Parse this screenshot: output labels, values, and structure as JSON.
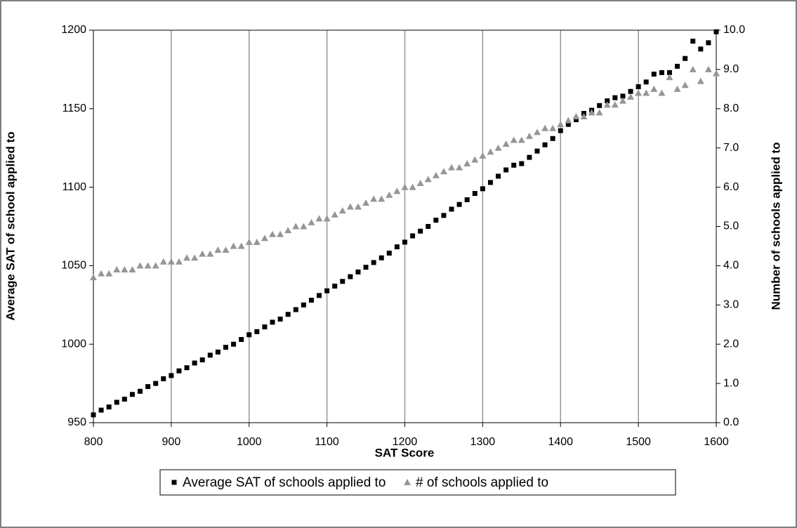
{
  "chart_data": {
    "type": "scatter",
    "x_label": "SAT Score",
    "y_label": "Average SAT of school applied to",
    "y2_label": "Number of schools applied to",
    "x": [
      800,
      810,
      820,
      830,
      840,
      850,
      860,
      870,
      880,
      890,
      900,
      910,
      920,
      930,
      940,
      950,
      960,
      970,
      980,
      990,
      1000,
      1010,
      1020,
      1030,
      1040,
      1050,
      1060,
      1070,
      1080,
      1090,
      1100,
      1110,
      1120,
      1130,
      1140,
      1150,
      1160,
      1170,
      1180,
      1190,
      1200,
      1210,
      1220,
      1230,
      1240,
      1250,
      1260,
      1270,
      1280,
      1290,
      1300,
      1310,
      1320,
      1330,
      1340,
      1350,
      1360,
      1370,
      1380,
      1390,
      1400,
      1410,
      1420,
      1430,
      1440,
      1450,
      1460,
      1470,
      1480,
      1490,
      1500,
      1510,
      1520,
      1530,
      1540,
      1550,
      1560,
      1570,
      1580,
      1590,
      1600
    ],
    "series": [
      {
        "name": "Average SAT of schools applied to",
        "color": "#000000",
        "marker": "square",
        "values": [
          955,
          958,
          960,
          963,
          965,
          968,
          970,
          973,
          975,
          978,
          980,
          983,
          985,
          988,
          990,
          993,
          995,
          998,
          1000,
          1003,
          1006,
          1008,
          1011,
          1014,
          1016,
          1019,
          1022,
          1025,
          1028,
          1031,
          1034,
          1037,
          1040,
          1043,
          1046,
          1049,
          1052,
          1055,
          1058,
          1062,
          1065,
          1069,
          1072,
          1075,
          1079,
          1082,
          1086,
          1089,
          1092,
          1096,
          1099,
          1103,
          1107,
          1111,
          1114,
          1115,
          1119,
          1123,
          1127,
          1131,
          1136,
          1140,
          1143,
          1147,
          1149,
          1152,
          1155,
          1157,
          1158,
          1161,
          1164,
          1167,
          1172,
          1173,
          1173,
          1177,
          1182,
          1193,
          1188,
          1192,
          1199
        ]
      },
      {
        "name": "# of schools applied to",
        "color": "#969696",
        "marker": "triangle",
        "axis": "y2",
        "values": [
          3.7,
          3.8,
          3.8,
          3.9,
          3.9,
          3.9,
          4.0,
          4.0,
          4.0,
          4.1,
          4.1,
          4.1,
          4.2,
          4.2,
          4.3,
          4.3,
          4.4,
          4.4,
          4.5,
          4.5,
          4.6,
          4.6,
          4.7,
          4.8,
          4.8,
          4.9,
          5.0,
          5.0,
          5.1,
          5.2,
          5.2,
          5.3,
          5.4,
          5.5,
          5.5,
          5.6,
          5.7,
          5.7,
          5.8,
          5.9,
          6.0,
          6.0,
          6.1,
          6.2,
          6.3,
          6.4,
          6.5,
          6.5,
          6.6,
          6.7,
          6.8,
          6.9,
          7.0,
          7.1,
          7.2,
          7.2,
          7.3,
          7.4,
          7.5,
          7.5,
          7.6,
          7.7,
          7.8,
          7.8,
          7.9,
          7.9,
          8.1,
          8.1,
          8.2,
          8.3,
          8.4,
          8.4,
          8.5,
          8.4,
          8.8,
          8.5,
          8.6,
          9.0,
          8.7,
          9.0,
          8.9
        ]
      }
    ],
    "xlim": [
      800,
      1600
    ],
    "xticks": [
      800,
      900,
      1000,
      1100,
      1200,
      1300,
      1400,
      1500,
      1600
    ],
    "ylim": [
      950,
      1200
    ],
    "yticks": [
      950,
      1000,
      1050,
      1100,
      1150,
      1200
    ],
    "y2lim": [
      0,
      10
    ],
    "y2ticks": [
      {
        "value": 0,
        "label": "0.0"
      },
      {
        "value": 1,
        "label": "1.0"
      },
      {
        "value": 2,
        "label": "2.0"
      },
      {
        "value": 3,
        "label": "3.0"
      },
      {
        "value": 4,
        "label": "4.0"
      },
      {
        "value": 5,
        "label": "5.0"
      },
      {
        "value": 6,
        "label": "6.0"
      },
      {
        "value": 7,
        "label": "7.0"
      },
      {
        "value": 8,
        "label": "8.0"
      },
      {
        "value": 9,
        "label": "9.0"
      },
      {
        "value": 10,
        "label": "10.0"
      }
    ],
    "grid": "x",
    "legend": "bottom"
  }
}
